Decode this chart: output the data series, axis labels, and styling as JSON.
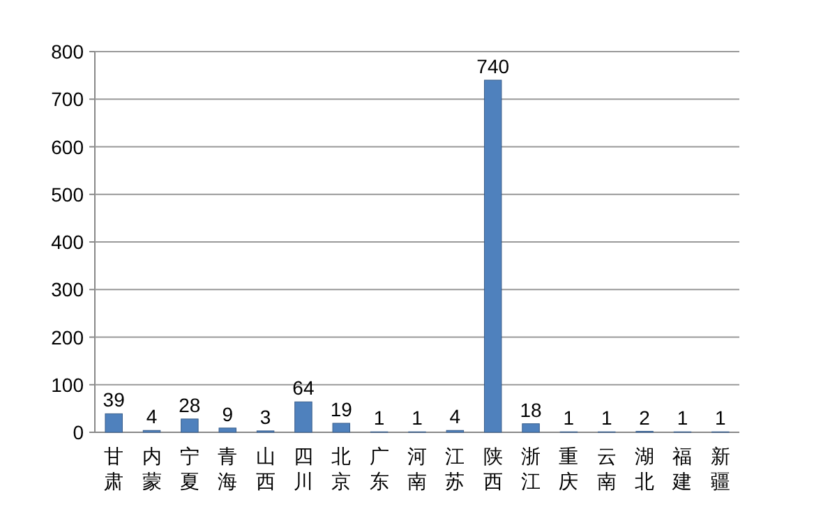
{
  "chart_data": {
    "type": "bar",
    "categories": [
      "甘肃",
      "内蒙",
      "宁夏",
      "青海",
      "山西",
      "四川",
      "北京",
      "广东",
      "河南",
      "江苏",
      "陕西",
      "浙江",
      "重庆",
      "云南",
      "湖北",
      "福建",
      "新疆"
    ],
    "values": [
      39,
      4,
      28,
      9,
      3,
      64,
      19,
      1,
      1,
      4,
      740,
      18,
      1,
      1,
      2,
      1,
      1
    ],
    "color": "#4f81bd",
    "ylim": [
      0,
      800
    ],
    "yticks": [
      0,
      100,
      200,
      300,
      400,
      500,
      600,
      700,
      800
    ],
    "grid": "y",
    "data_labels": true
  }
}
